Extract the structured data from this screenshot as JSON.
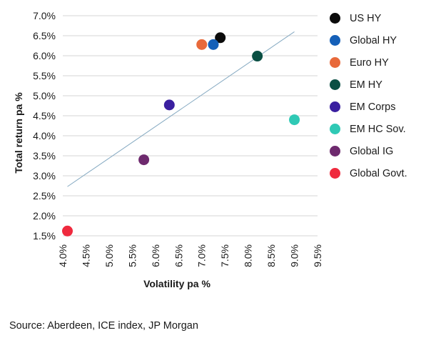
{
  "chart_data": {
    "type": "scatter",
    "title": "",
    "xlabel": "Volatility pa %",
    "ylabel": "Total return pa %",
    "xlim": [
      4.0,
      9.5
    ],
    "ylim": [
      1.5,
      7.0
    ],
    "x_ticks": [
      "4.0%",
      "4.5%",
      "5.0%",
      "5.5%",
      "6.0%",
      "6.5%",
      "7.0%",
      "7.5%",
      "8.0%",
      "8.5%",
      "9.0%",
      "9.5%"
    ],
    "y_ticks": [
      "1.5%",
      "2.0%",
      "2.5%",
      "3.0%",
      "3.5%",
      "4.0%",
      "4.5%",
      "5.0%",
      "5.5%",
      "6.0%",
      "6.5%",
      "7.0%"
    ],
    "grid": "horizontal",
    "legend_position": "right",
    "series": [
      {
        "name": "US HY",
        "color": "#0b0b0b",
        "x": 7.4,
        "y": 6.45
      },
      {
        "name": "Global HY",
        "color": "#1560b8",
        "x": 7.25,
        "y": 6.28
      },
      {
        "name": "Euro HY",
        "color": "#e8693a",
        "x": 7.0,
        "y": 6.28
      },
      {
        "name": "EM HY",
        "color": "#0a4f43",
        "x": 8.2,
        "y": 5.99
      },
      {
        "name": "EM Corps",
        "color": "#3a1fa0",
        "x": 6.3,
        "y": 4.77
      },
      {
        "name": "EM HC Sov.",
        "color": "#2fc9b5",
        "x": 9.0,
        "y": 4.4
      },
      {
        "name": "Global IG",
        "color": "#6e2a6e",
        "x": 5.75,
        "y": 3.4
      },
      {
        "name": "Global Govt.",
        "color": "#ef2a3e",
        "x": 4.1,
        "y": 1.62
      }
    ],
    "trendline": {
      "color": "#86aac2",
      "x": [
        4.1,
        9.0
      ],
      "y": [
        2.73,
        6.6
      ]
    }
  },
  "source": "Source: Aberdeen, ICE index, JP Morgan"
}
